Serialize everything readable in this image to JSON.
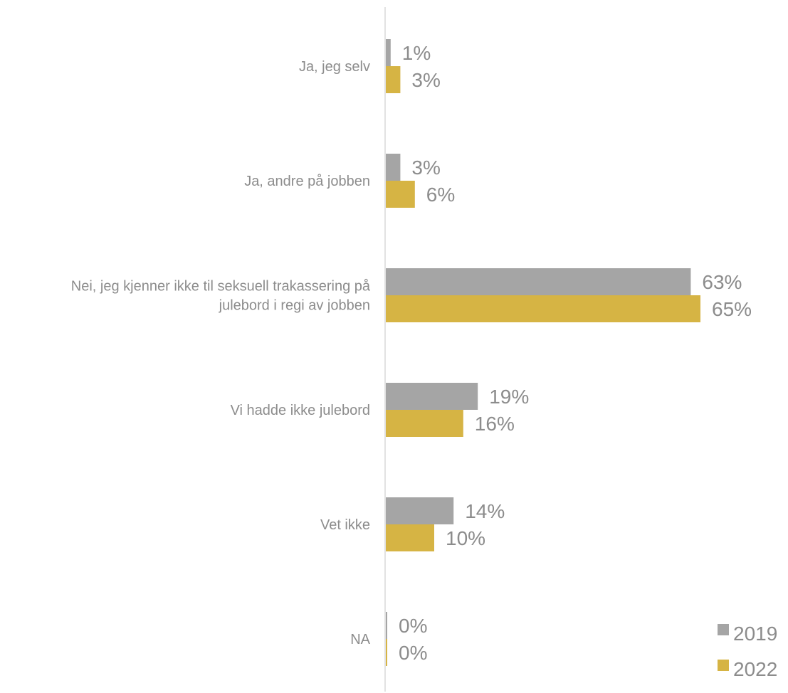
{
  "chart_data": {
    "type": "bar",
    "orientation": "horizontal",
    "categories": [
      [
        "Ja, jeg selv"
      ],
      [
        "Ja, andre på jobben"
      ],
      [
        "Nei, jeg kjenner ikke til seksuell trakassering på",
        "julebord i regi av jobben"
      ],
      [
        "Vi hadde ikke julebord"
      ],
      [
        "Vet ikke"
      ],
      [
        "NA"
      ]
    ],
    "series": [
      {
        "name": "2019",
        "color": "#a5a5a5",
        "values": [
          1,
          3,
          63,
          19,
          14,
          0
        ],
        "labels": [
          "1%",
          "3%",
          "63%",
          "19%",
          "14%",
          "0%"
        ]
      },
      {
        "name": "2022",
        "color": "#d6b444",
        "values": [
          3,
          6,
          65,
          16,
          10,
          0
        ],
        "labels": [
          "3%",
          "6%",
          "65%",
          "16%",
          "10%",
          "0%"
        ]
      }
    ],
    "xlim": [
      0,
      100
    ],
    "grid": false,
    "legend_position": "bottom-right"
  }
}
